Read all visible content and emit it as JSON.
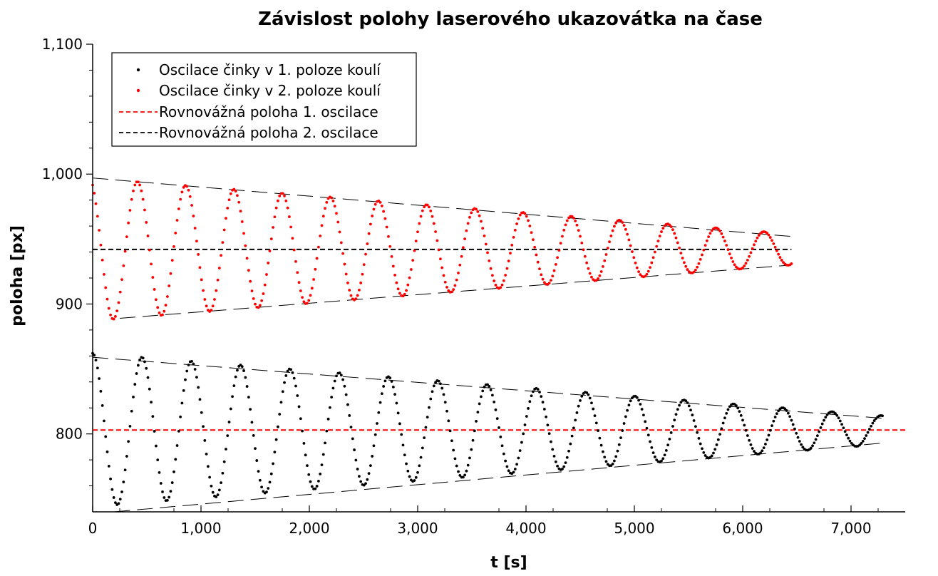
{
  "chart_data": {
    "type": "scatter",
    "title": "Závislost polohy laserového ukazovátka na čase",
    "xlabel": "t [s]",
    "ylabel": "poloha [px]",
    "xlim": [
      0,
      7500
    ],
    "ylim": [
      740,
      1100
    ],
    "xticks": [
      0,
      1000,
      2000,
      3000,
      4000,
      5000,
      6000,
      7000
    ],
    "xtick_labels": [
      "0",
      "1,000",
      "2,000",
      "3,000",
      "4,000",
      "5,000",
      "6,000",
      "7,000"
    ],
    "yticks": [
      800,
      900,
      1000,
      1100
    ],
    "ytick_labels": [
      "800",
      "900",
      "1,000",
      "1,100"
    ],
    "grid": false,
    "legend_position": "top-left",
    "series": [
      {
        "name": "Oscilace činky v 1. poloze koulí",
        "kind": "points",
        "color": "#000000",
        "model": {
          "center": 803,
          "amp_start": 59,
          "amp_end": 11,
          "period": 455,
          "phase": 0,
          "t_start": 0,
          "t_end": 7300,
          "step": 15
        }
      },
      {
        "name": "Oscilace činky v 2. poloze koulí",
        "kind": "points",
        "color": "#ff0000",
        "model": {
          "center": 942,
          "amp_start": 55,
          "amp_end": 12,
          "period": 445,
          "phase": 0.45,
          "t_start": 0,
          "t_end": 6450,
          "step": 15
        }
      },
      {
        "name": "Rovnovážná poloha 1. oscilace",
        "kind": "hline",
        "color": "#ff0000",
        "y": 803,
        "x_range": [
          0,
          7500
        ]
      },
      {
        "name": "Rovnovážná poloha 2. oscilace",
        "kind": "hline",
        "color": "#000000",
        "y": 942,
        "x_range": [
          0,
          6450
        ]
      }
    ],
    "envelopes": [
      {
        "color": "#000000",
        "x": [
          0,
          7300
        ],
        "y": [
          859,
          812
        ]
      },
      {
        "color": "#000000",
        "x": [
          200,
          7300
        ],
        "y": [
          740,
          793
        ]
      },
      {
        "color": "#000000",
        "x": [
          0,
          6450
        ],
        "y": [
          997,
          952
        ]
      },
      {
        "color": "#000000",
        "x": [
          250,
          6450
        ],
        "y": [
          889,
          930
        ]
      }
    ]
  }
}
